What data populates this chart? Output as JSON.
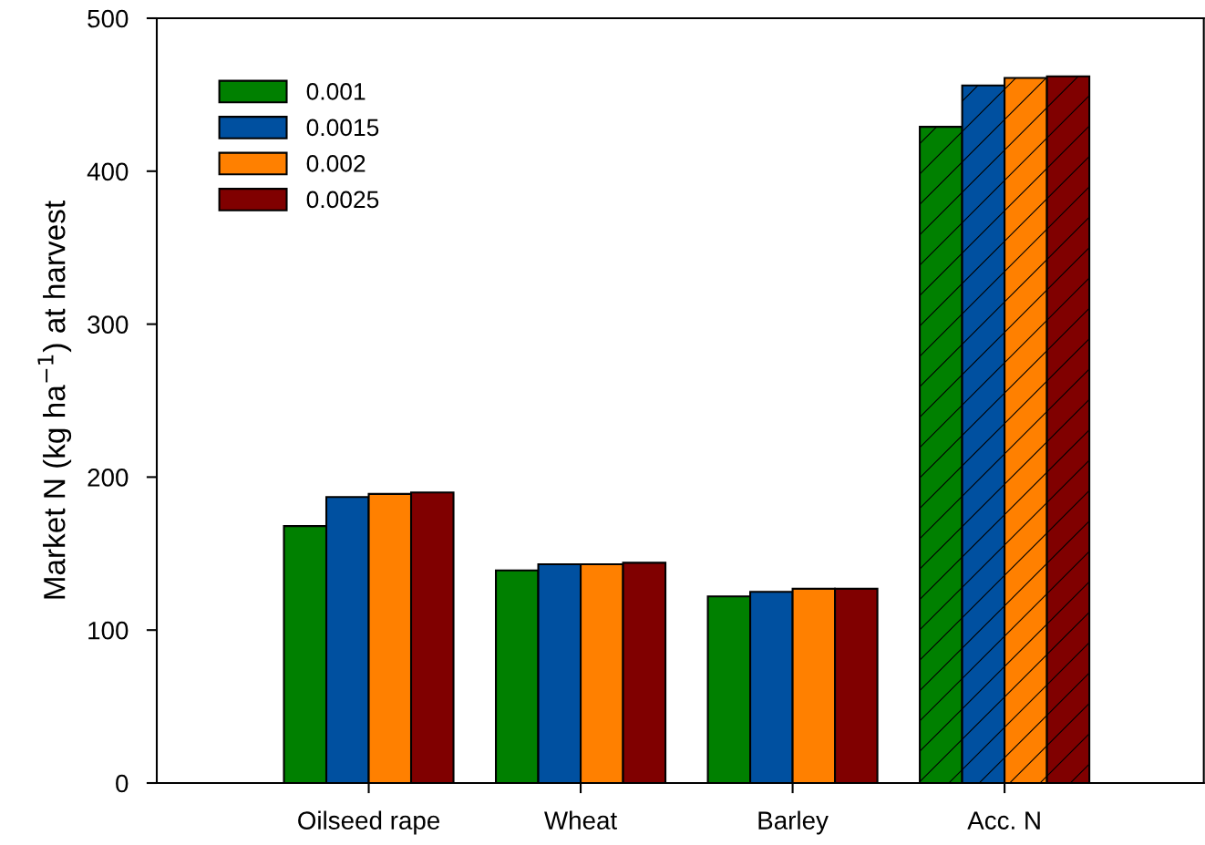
{
  "chart_data": {
    "type": "bar",
    "ylabel": "Market N (kg ha$^{−1}$) at harvest",
    "categories": [
      "Oilseed rape",
      "Wheat",
      "Barley",
      "Acc. N"
    ],
    "series": [
      {
        "name": "0.001",
        "color": "#008000",
        "values": [
          168,
          139,
          122,
          429
        ]
      },
      {
        "name": "0.0015",
        "color": "#0050a0",
        "values": [
          187,
          143,
          125,
          456
        ]
      },
      {
        "name": "0.002",
        "color": "#ff8000",
        "values": [
          189,
          143,
          127,
          461
        ]
      },
      {
        "name": "0.0025",
        "color": "#800000",
        "values": [
          190,
          144,
          127,
          462
        ]
      }
    ],
    "ylim": [
      0,
      500
    ],
    "yticks": [
      0,
      100,
      200,
      300,
      400,
      500
    ],
    "grid": false,
    "legend": "top left"
  }
}
